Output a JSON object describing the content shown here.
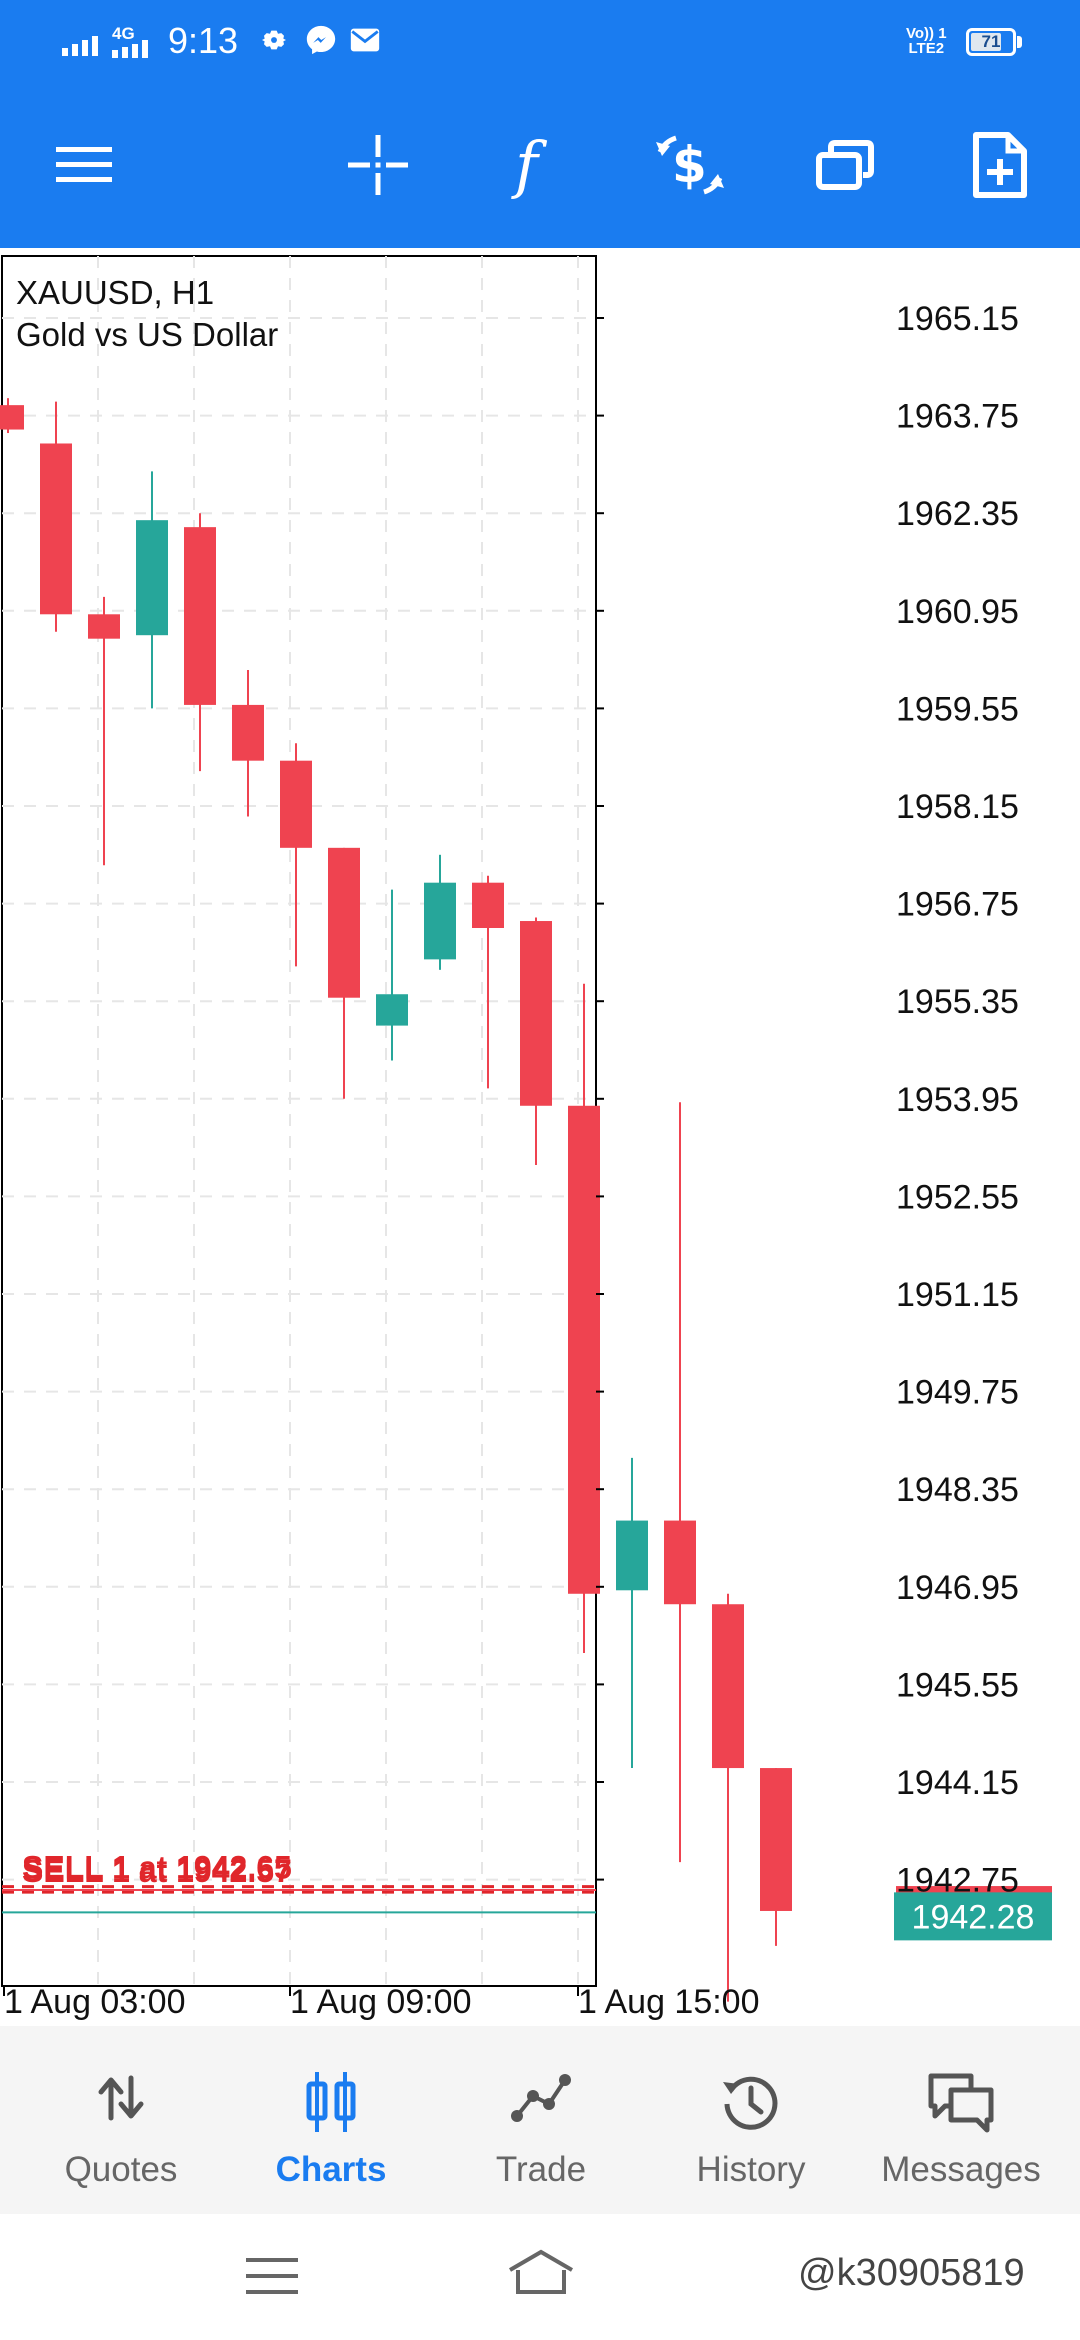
{
  "status_bar": {
    "network": "4G",
    "time": "9:13",
    "volte": "Vo)) 1",
    "lte": "LTE2",
    "battery": "71"
  },
  "toolbar": {
    "icons": [
      "menu-icon",
      "crosshair-icon",
      "indicator-f-icon",
      "trade-dollar-icon",
      "windows-icon",
      "new-order-icon"
    ]
  },
  "chart": {
    "symbol": "XAUUSD, H1",
    "description": "Gold vs US Dollar",
    "price_labels": [
      "1965.15",
      "1963.75",
      "1962.35",
      "1960.95",
      "1959.55",
      "1958.15",
      "1956.75",
      "1955.35",
      "1953.95",
      "1952.55",
      "1951.15",
      "1949.75",
      "1948.35",
      "1946.95",
      "1945.55",
      "1944.15",
      "1942.75"
    ],
    "current_price": "1942.28",
    "time_labels": [
      "1 Aug 03:00",
      "1 Aug 09:00",
      "1 Aug 15:00"
    ],
    "sell_lines": [
      "SELL 1 at 1942.65",
      "SELL 1 at 1942.57"
    ],
    "colors": {
      "bull": "#26a69a",
      "bear": "#ef4350",
      "grid": "#e6e6e6",
      "sell": "#e0262b"
    }
  },
  "chart_data": {
    "type": "candlestick",
    "candles": [
      {
        "open": 1963.9,
        "high": 1964.0,
        "low": 1963.5,
        "close": 1963.55
      },
      {
        "open": 1963.35,
        "high": 1963.95,
        "low": 1960.65,
        "close": 1960.9
      },
      {
        "open": 1960.9,
        "high": 1961.15,
        "low": 1957.3,
        "close": 1960.55
      },
      {
        "open": 1960.6,
        "high": 1962.95,
        "low": 1959.55,
        "close": 1962.25
      },
      {
        "open": 1962.15,
        "high": 1962.35,
        "low": 1958.65,
        "close": 1959.6
      },
      {
        "open": 1959.6,
        "high": 1960.1,
        "low": 1958.0,
        "close": 1958.8
      },
      {
        "open": 1958.8,
        "high": 1959.05,
        "low": 1955.85,
        "close": 1957.55
      },
      {
        "open": 1957.55,
        "high": 1957.55,
        "low": 1953.95,
        "close": 1955.4
      },
      {
        "open": 1955.0,
        "high": 1956.95,
        "low": 1954.5,
        "close": 1955.45
      },
      {
        "open": 1955.95,
        "high": 1957.45,
        "low": 1955.8,
        "close": 1957.05
      },
      {
        "open": 1957.05,
        "high": 1957.15,
        "low": 1954.1,
        "close": 1956.4
      },
      {
        "open": 1956.5,
        "high": 1956.55,
        "low": 1953.0,
        "close": 1953.85
      },
      {
        "open": 1953.85,
        "high": 1955.6,
        "low": 1946.0,
        "close": 1946.85
      },
      {
        "open": 1946.9,
        "high": 1948.8,
        "low": 1944.35,
        "close": 1947.9
      },
      {
        "open": 1947.9,
        "high": 1953.9,
        "low": 1943.0,
        "close": 1946.7
      },
      {
        "open": 1946.7,
        "high": 1946.85,
        "low": 1941.0,
        "close": 1944.35
      },
      {
        "open": 1944.35,
        "high": 1944.35,
        "low": 1941.8,
        "close": 1942.3
      }
    ],
    "ylim": [
      1941.0,
      1966.0
    ],
    "y_ticks": [
      1965.15,
      1963.75,
      1962.35,
      1960.95,
      1959.55,
      1958.15,
      1956.75,
      1955.35,
      1953.95,
      1952.55,
      1951.15,
      1949.75,
      1948.35,
      1946.95,
      1945.55,
      1944.15,
      1942.75
    ],
    "x_tick_labels": [
      "1 Aug 03:00",
      "1 Aug 09:00",
      "1 Aug 15:00"
    ],
    "sell_levels": [
      1942.65,
      1942.57
    ],
    "bid": 1942.28,
    "ask": 1942.6,
    "grid": true
  },
  "bottom_nav": {
    "items": [
      {
        "label": "Quotes",
        "icon": "quotes-arrows-icon",
        "active": false
      },
      {
        "label": "Charts",
        "icon": "charts-candles-icon",
        "active": true
      },
      {
        "label": "Trade",
        "icon": "trade-line-icon",
        "active": false
      },
      {
        "label": "History",
        "icon": "history-clock-icon",
        "active": false
      },
      {
        "label": "Messages",
        "icon": "messages-chat-icon",
        "active": false
      }
    ]
  },
  "watermark": "@k30905819"
}
